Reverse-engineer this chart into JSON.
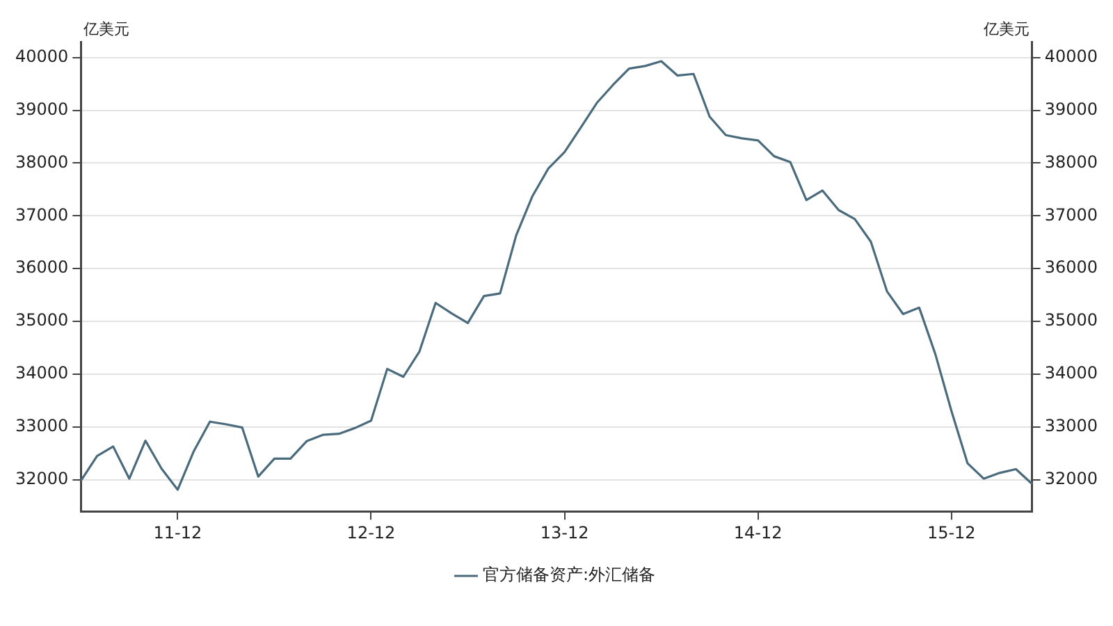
{
  "chart_data": {
    "type": "line",
    "ylabel": "亿美元",
    "y2label": "亿美元",
    "categories": [
      null,
      null,
      null,
      null,
      null,
      null,
      "11-12",
      null,
      null,
      null,
      null,
      null,
      null,
      null,
      null,
      null,
      null,
      null,
      "12-12",
      null,
      null,
      null,
      null,
      null,
      null,
      null,
      null,
      null,
      null,
      null,
      "13-12",
      null,
      null,
      null,
      null,
      null,
      null,
      null,
      null,
      null,
      null,
      null,
      "14-12",
      null,
      null,
      null,
      null,
      null,
      null,
      null,
      null,
      null,
      null,
      null,
      "15-12",
      null,
      null,
      null,
      null,
      null
    ],
    "series": [
      {
        "name": "官方储备资产:外汇储备",
        "color": "#4a6b7c",
        "values": [
          31980,
          32450,
          32630,
          32020,
          32740,
          32210,
          31810,
          32540,
          33100,
          33050,
          32990,
          32060,
          32400,
          32400,
          32730,
          32850,
          32870,
          32980,
          33120,
          34100,
          33950,
          34430,
          35350,
          35150,
          34970,
          35480,
          35530,
          36630,
          37370,
          37900,
          38210,
          38670,
          39140,
          39480,
          39790,
          39840,
          39930,
          39660,
          39690,
          38880,
          38530,
          38470,
          38430,
          38130,
          38020,
          37300,
          37480,
          37110,
          36940,
          36510,
          35570,
          35140,
          35260,
          34380,
          33300,
          32310,
          32020,
          32130,
          32200,
          31920
        ]
      }
    ],
    "ylim": [
      31400,
      40300
    ],
    "yticks": [
      32000,
      33000,
      34000,
      35000,
      36000,
      37000,
      38000,
      39000,
      40000
    ],
    "y2lim": [
      31400,
      40300
    ],
    "y2ticks": [
      32000,
      33000,
      34000,
      35000,
      36000,
      37000,
      38000,
      39000,
      40000
    ],
    "grid": "y",
    "legend": "bottom",
    "line_style": "solid",
    "marker": "none"
  }
}
